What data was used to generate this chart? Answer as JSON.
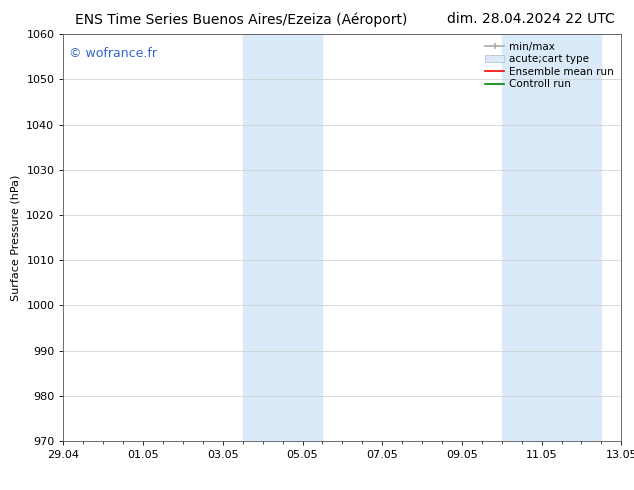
{
  "title_left": "ENS Time Series Buenos Aires/Ezeiza (Aéroport)",
  "title_right": "dim. 28.04.2024 22 UTC",
  "ylabel": "Surface Pressure (hPa)",
  "ylim": [
    970,
    1060
  ],
  "yticks": [
    970,
    980,
    990,
    1000,
    1010,
    1020,
    1030,
    1040,
    1050,
    1060
  ],
  "xtick_labels": [
    "29.04",
    "01.05",
    "03.05",
    "05.05",
    "07.05",
    "09.05",
    "11.05",
    "13.05"
  ],
  "xtick_positions": [
    0,
    2,
    4,
    6,
    8,
    10,
    12,
    14
  ],
  "shaded_bands": [
    {
      "x_start": 4.5,
      "x_end": 6.5
    },
    {
      "x_start": 11.0,
      "x_end": 12.0
    },
    {
      "x_start": 12.0,
      "x_end": 13.5
    }
  ],
  "shaded_color": "#daeaf8",
  "watermark_text": "© wofrance.fr",
  "watermark_color": "#3366cc",
  "background_color": "#ffffff",
  "legend_min_max_color": "#aaaaaa",
  "legend_band_color": "#daeaf8",
  "legend_band_edge": "#aabbcc",
  "legend_ensemble_color": "#ff0000",
  "legend_control_color": "#008800",
  "font_size_title": 10,
  "font_size_axis": 8,
  "font_size_legend": 7.5,
  "font_size_watermark": 9,
  "fig_width": 6.34,
  "fig_height": 4.9,
  "dpi": 100
}
